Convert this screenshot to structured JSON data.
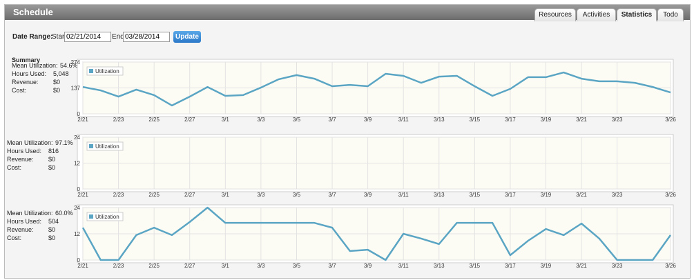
{
  "header": {
    "title": "Schedule"
  },
  "tabs": [
    {
      "label": "Resources"
    },
    {
      "label": "Activities"
    },
    {
      "label": "Statistics"
    },
    {
      "label": "Todo"
    }
  ],
  "date_range": {
    "label": "Date Range:",
    "start_label": "Start:",
    "start": "02/21/2014",
    "end_label": "End:",
    "end": "03/28/2014",
    "button": "Update"
  },
  "summary_heading": "Summary",
  "summaries": [
    [
      {
        "label": "Mean Utilization:",
        "value": "54.6%"
      },
      {
        "label": "Hours Used:",
        "value": "5,048"
      },
      {
        "label": "Revenue:",
        "value": "$0"
      },
      {
        "label": "Cost:",
        "value": "$0"
      }
    ],
    [
      {
        "label": "Mean Utilization:",
        "value": "97.1%"
      },
      {
        "label": "Hours Used:",
        "value": "816"
      },
      {
        "label": "Revenue:",
        "value": "$0"
      },
      {
        "label": "Cost:",
        "value": "$0"
      }
    ],
    [
      {
        "label": "Mean Utilization:",
        "value": "60.0%"
      },
      {
        "label": "Hours Used:",
        "value": "504"
      },
      {
        "label": "Revenue:",
        "value": "$0"
      },
      {
        "label": "Cost:",
        "value": "$0"
      }
    ]
  ],
  "chart_data": [
    {
      "type": "line",
      "categories": [
        "2/21",
        null,
        "2/23",
        null,
        "2/25",
        null,
        "2/27",
        null,
        "3/1",
        null,
        "3/3",
        null,
        "3/5",
        null,
        "3/7",
        null,
        "3/9",
        null,
        "3/11",
        null,
        "3/13",
        null,
        "3/15",
        null,
        "3/17",
        null,
        "3/19",
        null,
        "3/21",
        null,
        "3/23",
        null,
        null,
        "3/26"
      ],
      "series": [
        {
          "name": "Utilization",
          "color": "#5aa5c4",
          "values": [
            142,
            124,
            91,
            128,
            99,
            44,
            91,
            142,
            95,
            99,
            139,
            183,
            205,
            186,
            146,
            153,
            146,
            212,
            201,
            164,
            197,
            201,
            146,
            95,
            132,
            194,
            194,
            219,
            186,
            172,
            172,
            164,
            142,
            113
          ]
        }
      ],
      "ylim": [
        0,
        274
      ],
      "yticks": [
        0,
        137,
        274
      ],
      "grid": true
    },
    {
      "type": "line",
      "categories": [
        "2/21",
        null,
        "2/23",
        null,
        "2/25",
        null,
        "2/27",
        null,
        "3/1",
        null,
        "3/3",
        null,
        "3/5",
        null,
        "3/7",
        null,
        "3/9",
        null,
        "3/11",
        null,
        "3/13",
        null,
        "3/15",
        null,
        "3/17",
        null,
        "3/19",
        null,
        "3/21",
        null,
        "3/23",
        null,
        null,
        "3/26"
      ],
      "series": [
        {
          "name": "Utilization",
          "color": "#5aa5c4",
          "values": [
            null,
            null,
            null,
            null,
            null,
            null,
            null,
            null,
            null,
            null,
            null,
            null,
            null,
            null,
            null,
            null,
            null,
            null,
            null,
            null,
            null,
            null,
            null,
            null,
            null,
            null,
            null,
            null,
            null,
            null,
            null,
            null,
            null,
            null
          ]
        }
      ],
      "ylim": [
        0,
        24
      ],
      "yticks": [
        0,
        12,
        24
      ],
      "grid": true
    },
    {
      "type": "line",
      "categories": [
        "2/21",
        null,
        "2/23",
        null,
        "2/25",
        null,
        "2/27",
        null,
        "3/1",
        null,
        "3/3",
        null,
        "3/5",
        null,
        "3/7",
        null,
        "3/9",
        null,
        "3/11",
        null,
        "3/13",
        null,
        "3/15",
        null,
        "3/17",
        null,
        "3/19",
        null,
        "3/21",
        null,
        "3/23",
        null,
        null,
        "3/26"
      ],
      "series": [
        {
          "name": "Utilization",
          "color": "#5aa5c4",
          "values": [
            14.8,
            0,
            0,
            11.4,
            14.8,
            11.4,
            17.4,
            24,
            17,
            17,
            17,
            17,
            17,
            17,
            14.8,
            4.1,
            4.7,
            0,
            12,
            9.8,
            7.3,
            17,
            17,
            17,
            2.2,
            8.8,
            14.2,
            11.4,
            16.7,
            9.8,
            0,
            0,
            0,
            11.4
          ]
        }
      ],
      "ylim": [
        0,
        24
      ],
      "yticks": [
        0,
        12,
        24
      ],
      "grid": true
    }
  ]
}
